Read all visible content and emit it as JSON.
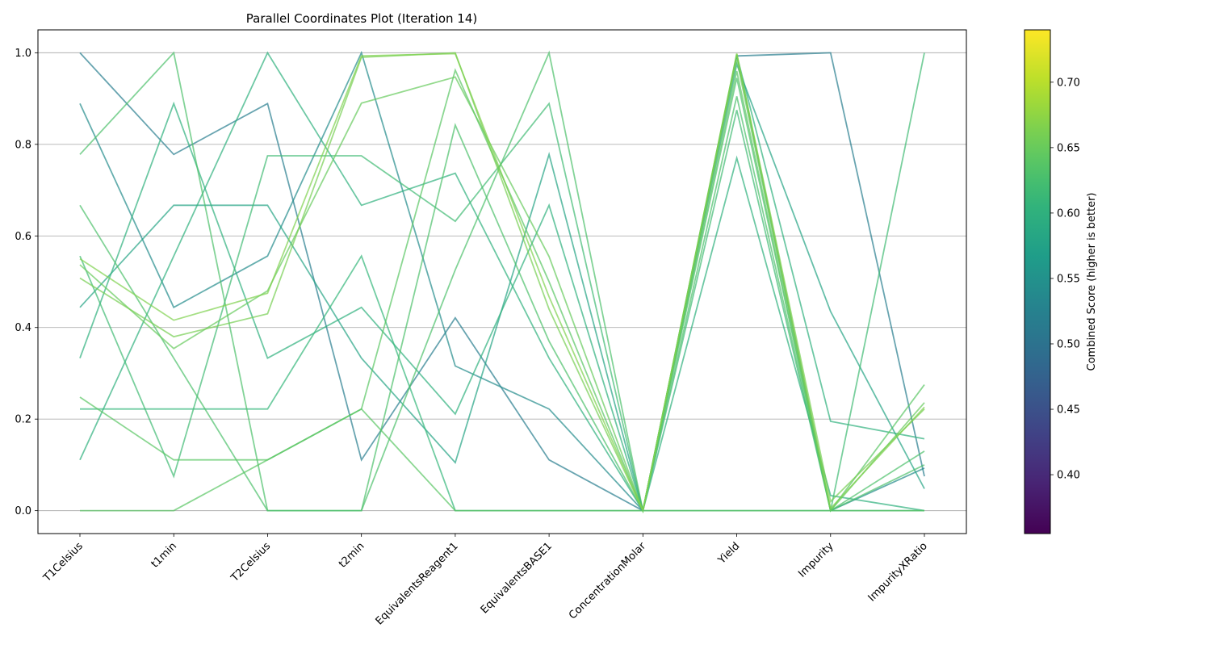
{
  "chart_data": {
    "type": "parallel-coordinates",
    "title": "Parallel Coordinates Plot (Iteration 14)",
    "axes": [
      "T1Celsius",
      "t1min",
      "T2Celsius",
      "t2min",
      "EquivalentsReagent1",
      "EquivalentsBASE1",
      "ConcentrationMolar",
      "Yield",
      "Impurity",
      "ImpurityXRatio"
    ],
    "ylim": [
      -0.05,
      1.05
    ],
    "yticks": [
      "0.0",
      "0.2",
      "0.4",
      "0.6",
      "0.8",
      "1.0"
    ],
    "ytick_values": [
      0.0,
      0.2,
      0.4,
      0.6,
      0.8,
      1.0
    ],
    "grid": true,
    "colorbar": {
      "label": "Combined Score (higher is better)",
      "range": [
        0.355,
        0.74
      ],
      "ticks": [
        "0.40",
        "0.45",
        "0.50",
        "0.55",
        "0.60",
        "0.65",
        "0.70"
      ],
      "tick_values": [
        0.4,
        0.45,
        0.5,
        0.55,
        0.6,
        0.65,
        0.7
      ],
      "colormap": "viridis"
    },
    "series": [
      {
        "values": [
          1.0,
          0.778,
          0.889,
          0.111,
          0.421,
          0.111,
          0.0,
          0.993,
          1.0,
          0.075
        ],
        "score": 0.52
      },
      {
        "values": [
          0.889,
          0.444,
          0.556,
          1.0,
          0.316,
          0.222,
          0.0,
          0.995,
          0.0,
          0.093
        ],
        "score": 0.54
      },
      {
        "values": [
          0.444,
          0.667,
          0.667,
          0.333,
          0.105,
          0.778,
          0.0,
          0.975,
          0.435,
          0.048
        ],
        "score": 0.58
      },
      {
        "values": [
          0.333,
          0.889,
          0.333,
          0.444,
          0.211,
          0.667,
          0.0,
          0.77,
          0.033,
          0.0
        ],
        "score": 0.6
      },
      {
        "values": [
          0.111,
          0.556,
          1.0,
          0.667,
          0.737,
          0.333,
          0.0,
          0.995,
          0.195,
          0.157
        ],
        "score": 0.6
      },
      {
        "values": [
          0.222,
          0.222,
          0.222,
          0.556,
          0.0,
          0.0,
          0.0,
          0.0,
          0.0,
          0.0
        ],
        "score": 0.61
      },
      {
        "values": [
          0.556,
          0.075,
          0.775,
          0.775,
          0.632,
          0.889,
          0.0,
          0.875,
          0.0,
          1.0
        ],
        "score": 0.62
      },
      {
        "values": [
          0.667,
          0.333,
          0.0,
          0.0,
          0.842,
          0.37,
          0.0,
          0.905,
          0.0,
          0.13
        ],
        "score": 0.63
      },
      {
        "values": [
          0.778,
          1.0,
          0.0,
          0.0,
          0.526,
          1.0,
          0.0,
          0.945,
          0.0,
          0.1
        ],
        "score": 0.63
      },
      {
        "values": [
          0.248,
          0.111,
          0.111,
          0.222,
          0.962,
          0.5,
          0.0,
          0.96,
          0.0,
          0.275
        ],
        "score": 0.64
      },
      {
        "values": [
          0.537,
          0.354,
          0.48,
          0.89,
          0.947,
          0.555,
          0.0,
          0.985,
          0.0,
          0.236
        ],
        "score": 0.65
      },
      {
        "values": [
          0.508,
          0.38,
          0.43,
          0.99,
          1.0,
          0.44,
          0.0,
          0.998,
          0.02,
          0.222
        ],
        "score": 0.66
      },
      {
        "values": [
          0.55,
          0.416,
          0.475,
          0.993,
          0.998,
          0.467,
          0.0,
          0.998,
          0.005,
          0.226
        ],
        "score": 0.665
      },
      {
        "values": [
          0.0,
          0.0,
          0.111,
          0.222,
          0.0,
          0.0,
          0.0,
          0.0,
          0.0,
          0.0
        ],
        "score": 0.64
      }
    ]
  }
}
